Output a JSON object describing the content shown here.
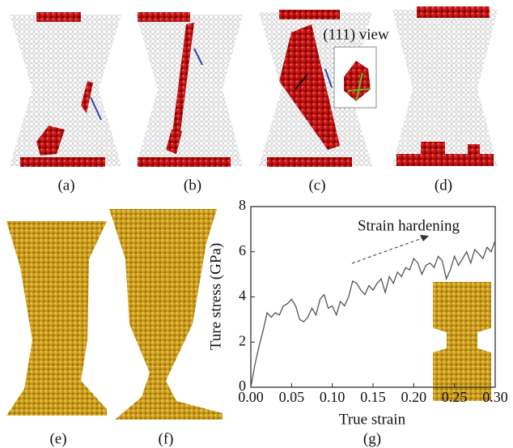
{
  "panel_labels": [
    "(a)",
    "(b)",
    "(c)",
    "(d)",
    "(e)",
    "(f)",
    "(g)"
  ],
  "inset_label": "(111) view",
  "chart_data": {
    "type": "line",
    "xlabel": "True strain",
    "ylabel": "Ture stress (GPa)",
    "annotation": "Strain hardening",
    "color": "#555555",
    "x": [
      0,
      0.005,
      0.01,
      0.015,
      0.02,
      0.025,
      0.03,
      0.035,
      0.04,
      0.045,
      0.05,
      0.055,
      0.06,
      0.065,
      0.07,
      0.075,
      0.08,
      0.085,
      0.09,
      0.095,
      0.1,
      0.105,
      0.11,
      0.115,
      0.12,
      0.125,
      0.13,
      0.135,
      0.14,
      0.145,
      0.15,
      0.155,
      0.16,
      0.165,
      0.17,
      0.175,
      0.18,
      0.185,
      0.19,
      0.195,
      0.2,
      0.205,
      0.21,
      0.215,
      0.22,
      0.225,
      0.23,
      0.235,
      0.24,
      0.245,
      0.25,
      0.255,
      0.26,
      0.265,
      0.27,
      0.275,
      0.28,
      0.285,
      0.29,
      0.295,
      0.3
    ],
    "values": [
      0,
      1,
      1.8,
      2.5,
      3.3,
      3.1,
      3.3,
      3.2,
      3.6,
      3.7,
      3.9,
      3.6,
      3,
      2.9,
      3.1,
      3.5,
      3.2,
      3.9,
      4.1,
      3.5,
      3.6,
      3.2,
      3.8,
      3.6,
      4,
      4.7,
      4.6,
      4.3,
      4.1,
      4.5,
      4.3,
      4.6,
      4.8,
      4.2,
      4.9,
      4.6,
      5.1,
      4.9,
      5.3,
      5.2,
      5.7,
      5.5,
      5,
      5.4,
      5.5,
      5.3,
      5.8,
      5.6,
      4.8,
      5.2,
      5.8,
      5.4,
      5.7,
      6,
      5.5,
      6.1,
      5.9,
      5.7,
      6.2,
      6,
      6.5
    ],
    "xlim": [
      0,
      0.3
    ],
    "xticks": [
      {
        "value": 0,
        "label": "0.00"
      },
      {
        "value": 0.05,
        "label": "0.05"
      },
      {
        "value": 0.1,
        "label": "0.10"
      },
      {
        "value": 0.15,
        "label": "0.15"
      },
      {
        "value": 0.2,
        "label": "0.20"
      },
      {
        "value": 0.25,
        "label": "0.25"
      },
      {
        "value": 0.3,
        "label": "0.30"
      }
    ],
    "ylim": [
      0,
      8
    ],
    "yticks": [
      0,
      2,
      4,
      6,
      8
    ]
  }
}
